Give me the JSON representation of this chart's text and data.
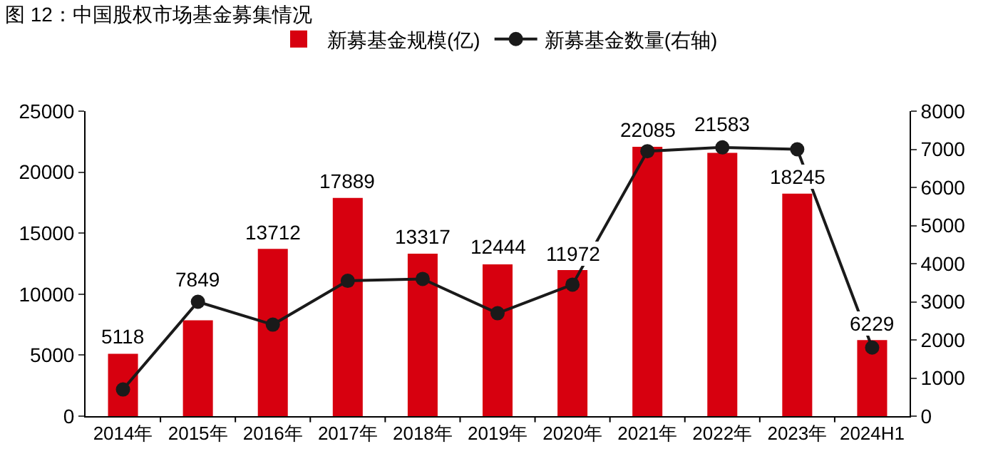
{
  "chart_data": {
    "type": "bar",
    "title": "图 12：中国股权市场基金募集情况",
    "categories": [
      "2014年",
      "2015年",
      "2016年",
      "2017年",
      "2018年",
      "2019年",
      "2020年",
      "2021年",
      "2022年",
      "2023年",
      "2024H1"
    ],
    "series": [
      {
        "name": "新募基金规模(亿)",
        "color": "#d7000f",
        "values": [
          5118,
          7849,
          13712,
          17889,
          13317,
          12444,
          11972,
          22085,
          21583,
          18245,
          6229
        ],
        "value_labels": [
          "5118",
          "7849",
          "13712",
          "17889",
          "13317",
          "12444",
          "11972",
          "22085",
          "21583",
          "18245",
          "6229"
        ]
      },
      {
        "name": "新募基金数量(右轴)",
        "type": "line",
        "axis": "y2",
        "color": "#1a1a1a",
        "marker": "circle",
        "values": [
          700,
          3000,
          2400,
          3550,
          3600,
          2700,
          3450,
          6950,
          7050,
          7000,
          1800
        ]
      }
    ],
    "ylim": [
      0,
      25000
    ],
    "yticks": [
      0,
      5000,
      10000,
      15000,
      20000,
      25000
    ],
    "y2lim": [
      0,
      8000
    ],
    "y2ticks": [
      0,
      1000,
      2000,
      3000,
      4000,
      5000,
      6000,
      7000,
      8000
    ],
    "grid": false,
    "legend": "top"
  }
}
